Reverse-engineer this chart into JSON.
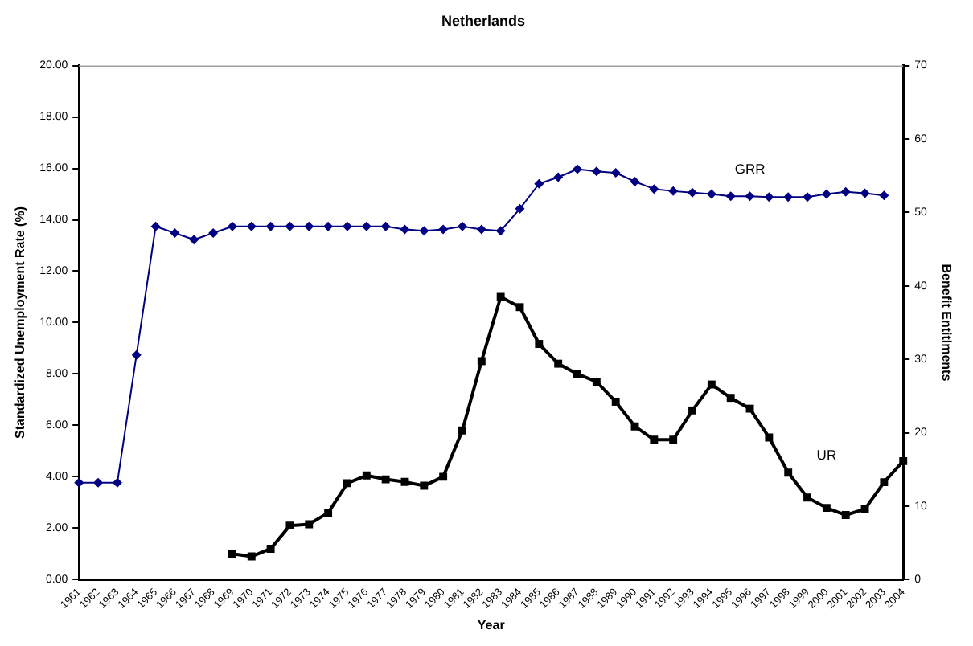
{
  "chart_data": {
    "type": "line",
    "title": "Netherlands",
    "xlabel": "Year",
    "ylabel": "Standardized Unemployment Rate (%)",
    "y2label": "Benefit Entitlments",
    "categories": [
      "1961",
      "1962",
      "1963",
      "1964",
      "1965",
      "1966",
      "1967",
      "1968",
      "1969",
      "1970",
      "1971",
      "1972",
      "1973",
      "1974",
      "1975",
      "1976",
      "1977",
      "1978",
      "1979",
      "1980",
      "1981",
      "1982",
      "1983",
      "1984",
      "1985",
      "1986",
      "1987",
      "1988",
      "1989",
      "1990",
      "1991",
      "1992",
      "1993",
      "1994",
      "1995",
      "1996",
      "1997",
      "1998",
      "1999",
      "2000",
      "2001",
      "2002",
      "2003",
      "2004"
    ],
    "series": [
      {
        "name": "GRR",
        "color": "#000080",
        "axis": "y2",
        "marker": "diamond",
        "values": [
          13.2,
          13.2,
          13.2,
          30.6,
          48.1,
          47.2,
          46.3,
          47.2,
          48.1,
          48.1,
          48.1,
          48.1,
          48.1,
          48.1,
          48.1,
          48.1,
          48.1,
          47.7,
          47.5,
          47.7,
          48.1,
          47.7,
          47.5,
          50.5,
          53.9,
          54.8,
          55.9,
          55.6,
          55.4,
          54.2,
          53.2,
          52.9,
          52.7,
          52.5,
          52.2,
          52.2,
          52.1,
          52.1,
          52.1,
          52.5,
          52.8,
          52.6,
          52.3,
          null
        ]
      },
      {
        "name": "UR",
        "color": "#000000",
        "axis": "y",
        "marker": "square",
        "values": [
          null,
          null,
          null,
          null,
          null,
          null,
          null,
          null,
          1.0,
          0.9,
          1.2,
          2.1,
          2.15,
          2.6,
          3.75,
          4.05,
          3.9,
          3.8,
          3.65,
          4.0,
          5.8,
          8.5,
          11.0,
          10.6,
          9.17,
          8.4,
          8.0,
          7.7,
          6.92,
          5.96,
          5.44,
          5.44,
          6.58,
          7.59,
          7.07,
          6.65,
          5.53,
          4.16,
          3.19,
          2.79,
          2.51,
          2.74,
          3.79,
          4.61
        ]
      }
    ],
    "ylim": [
      0,
      20
    ],
    "yticks": [
      {
        "value": 0,
        "label": "0.00"
      },
      {
        "value": 2,
        "label": "2.00"
      },
      {
        "value": 4,
        "label": "4.00"
      },
      {
        "value": 6,
        "label": "6.00"
      },
      {
        "value": 8,
        "label": "8.00"
      },
      {
        "value": 10,
        "label": "10.00"
      },
      {
        "value": 12,
        "label": "12.00"
      },
      {
        "value": 14,
        "label": "14.00"
      },
      {
        "value": 16,
        "label": "16.00"
      },
      {
        "value": 18,
        "label": "18.00"
      },
      {
        "value": 20,
        "label": "20.00"
      }
    ],
    "y2lim": [
      0,
      70
    ],
    "y2ticks": [
      0,
      10,
      20,
      30,
      40,
      50,
      60,
      70
    ],
    "grid": false,
    "legend": false,
    "line_style": "solid"
  }
}
